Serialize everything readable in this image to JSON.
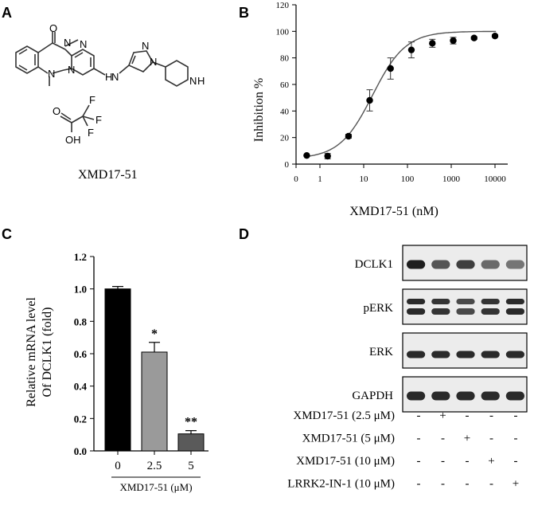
{
  "panels": {
    "A": {
      "letter": "A",
      "compound_name": "XMD17-51",
      "atoms": [
        "O",
        "N",
        "N",
        "N",
        "N",
        "H",
        "N",
        "N",
        "N",
        "N",
        "H",
        "F",
        "F",
        "F",
        "O",
        "OH"
      ]
    },
    "B": {
      "letter": "B",
      "chart_data": {
        "type": "scatter",
        "xscale": "log",
        "xlabel": "XMD17-51 (nM)",
        "ylabel": "Inhibition %",
        "xticks": [
          {
            "value": 0,
            "label": "0"
          },
          {
            "value": 1,
            "label": "1"
          },
          {
            "value": 10,
            "label": "10"
          },
          {
            "value": 100,
            "label": "100"
          },
          {
            "value": 1000,
            "label": "1000"
          },
          {
            "value": 10000,
            "label": "10000"
          }
        ],
        "yticks": [
          0,
          20,
          40,
          60,
          80,
          100,
          120
        ],
        "ylim": [
          0,
          120
        ],
        "points": [
          {
            "x": 0.5,
            "y": 6.5,
            "err": 0.5
          },
          {
            "x": 1.5,
            "y": 6,
            "err": 2
          },
          {
            "x": 4.5,
            "y": 21,
            "err": 1.5
          },
          {
            "x": 13.7,
            "y": 48,
            "err": 8
          },
          {
            "x": 41,
            "y": 72,
            "err": 8
          },
          {
            "x": 123,
            "y": 86,
            "err": 6
          },
          {
            "x": 370,
            "y": 91,
            "err": 3
          },
          {
            "x": 1111,
            "y": 93,
            "err": 2.5
          },
          {
            "x": 3333,
            "y": 95,
            "err": 1
          },
          {
            "x": 10000,
            "y": 96.5,
            "err": 1
          }
        ],
        "fit": {
          "bottom": 4,
          "top": 100,
          "ec50": 16,
          "hill": 1.15
        }
      }
    },
    "C": {
      "letter": "C",
      "chart_data": {
        "type": "bar",
        "categories": [
          "0",
          "2.5",
          "5"
        ],
        "values": [
          1.0,
          0.61,
          0.105
        ],
        "errors": [
          0.015,
          0.06,
          0.02
        ],
        "significance": [
          "",
          "*",
          "**"
        ],
        "colors": [
          "#000000",
          "#9a9a9a",
          "#5a5a5a"
        ],
        "ylabel_line1": "Relative mRNA level",
        "ylabel_line2": "Of DCLK1 (fold)",
        "xlabel": "XMD17-51 (μM)",
        "yticks": [
          "0.0",
          "0.2",
          "0.4",
          "0.6",
          "0.8",
          "1.0",
          "1.2"
        ],
        "ylim": [
          0,
          1.2
        ]
      }
    },
    "D": {
      "letter": "D",
      "blots": [
        {
          "label": "DCLK1",
          "intensities": [
            0.95,
            0.7,
            0.8,
            0.6,
            0.55
          ]
        },
        {
          "label": "pERK",
          "intensities": [
            0.9,
            0.85,
            0.75,
            0.85,
            0.9
          ]
        },
        {
          "label": "ERK",
          "intensities": [
            0.9,
            0.9,
            0.9,
            0.9,
            0.9
          ]
        },
        {
          "label": "GAPDH",
          "intensities": [
            0.9,
            0.9,
            0.9,
            0.9,
            0.9
          ]
        }
      ],
      "treatments": [
        {
          "label": "XMD17-51 (2.5 μM)",
          "signs": [
            "-",
            "+",
            "-",
            "-",
            "-"
          ]
        },
        {
          "label": "XMD17-51 (5 μM)",
          "signs": [
            "-",
            "-",
            "+",
            "-",
            "-"
          ]
        },
        {
          "label": "XMD17-51 (10 μM)",
          "signs": [
            "-",
            "-",
            "-",
            "+",
            "-"
          ]
        },
        {
          "label": "LRRK2-IN-1 (10 μM)",
          "signs": [
            "-",
            "-",
            "-",
            "-",
            "+"
          ]
        }
      ]
    }
  }
}
